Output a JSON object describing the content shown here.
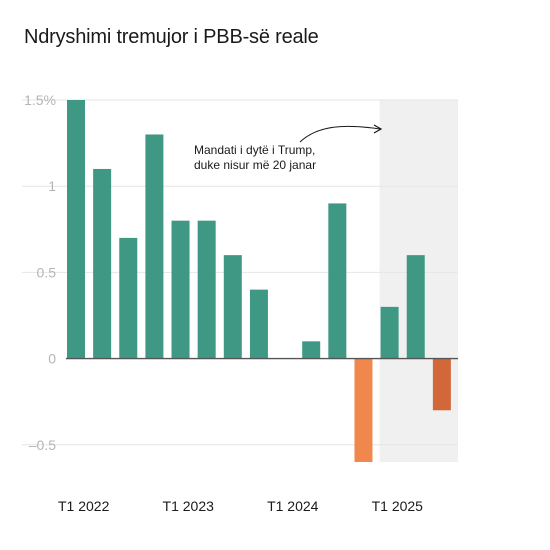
{
  "chart_data": {
    "type": "bar",
    "title": "Ndryshimi tremujor i PBB-së reale",
    "xlabel": "",
    "ylabel": "",
    "ylim": [
      -0.6,
      1.5
    ],
    "yticks": [
      {
        "value": 1.5,
        "label": "1.5%"
      },
      {
        "value": 1,
        "label": "1"
      },
      {
        "value": 0.5,
        "label": "0.5"
      },
      {
        "value": 0,
        "label": "0"
      },
      {
        "value": -0.5,
        "label": "–0.5"
      }
    ],
    "xtick_labels": [
      {
        "index": 0,
        "label": "T1 2022"
      },
      {
        "index": 4,
        "label": "T1 2023"
      },
      {
        "index": 8,
        "label": "T1 2024"
      },
      {
        "index": 12,
        "label": "T1 2025"
      }
    ],
    "values": [
      1.5,
      1.1,
      0.7,
      1.3,
      0.8,
      0.8,
      0.6,
      0.4,
      0.0,
      0.1,
      0.9,
      -0.6,
      0.3,
      0.6,
      -0.3
    ],
    "colors": {
      "positive": "#3e9884",
      "negative": "#f0884e",
      "negative_highlighted": "#d2683a",
      "shade": "#f0f0f0",
      "grid": "#e6e6e6"
    },
    "shaded_from_index": 12,
    "annotation": {
      "lines": [
        "Mandati i dytë i Trump,",
        "duke nisur më 20 janar"
      ]
    }
  }
}
